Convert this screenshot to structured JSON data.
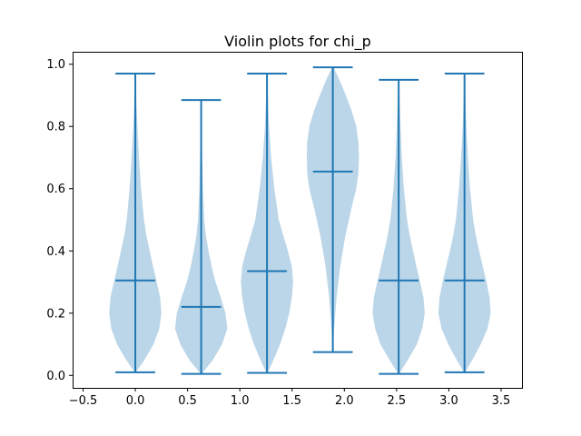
{
  "chart_data": {
    "type": "violin",
    "title": "Violin plots for chi_p",
    "xlabel": "",
    "ylabel": "",
    "xlim": [
      -0.6,
      3.7
    ],
    "ylim": [
      -0.04,
      1.04
    ],
    "x_ticks": [
      "−0.5",
      "0.0",
      "0.5",
      "1.0",
      "1.5",
      "2.0",
      "2.5",
      "3.0",
      "3.5"
    ],
    "y_ticks": [
      "0.0",
      "0.2",
      "0.4",
      "0.6",
      "0.8",
      "1.0"
    ],
    "grid": false,
    "color": "#1f77b4",
    "body_color": "#1f77b4",
    "body_alpha": 0.3,
    "series": [
      {
        "position": 0.0,
        "min": 0.01,
        "max": 0.97,
        "median": 0.305,
        "density": [
          [
            0.01,
            0.02
          ],
          [
            0.05,
            0.35
          ],
          [
            0.1,
            0.7
          ],
          [
            0.15,
            0.92
          ],
          [
            0.2,
            1.0
          ],
          [
            0.25,
            0.95
          ],
          [
            0.3,
            0.82
          ],
          [
            0.35,
            0.68
          ],
          [
            0.4,
            0.55
          ],
          [
            0.45,
            0.42
          ],
          [
            0.5,
            0.33
          ],
          [
            0.6,
            0.22
          ],
          [
            0.7,
            0.14
          ],
          [
            0.8,
            0.08
          ],
          [
            0.9,
            0.03
          ],
          [
            0.97,
            0.01
          ]
        ]
      },
      {
        "position": 0.63,
        "min": 0.005,
        "max": 0.885,
        "median": 0.22,
        "density": [
          [
            0.005,
            0.02
          ],
          [
            0.05,
            0.45
          ],
          [
            0.1,
            0.8
          ],
          [
            0.15,
            1.0
          ],
          [
            0.2,
            0.93
          ],
          [
            0.25,
            0.75
          ],
          [
            0.3,
            0.55
          ],
          [
            0.35,
            0.4
          ],
          [
            0.4,
            0.28
          ],
          [
            0.45,
            0.18
          ],
          [
            0.5,
            0.12
          ],
          [
            0.6,
            0.07
          ],
          [
            0.7,
            0.04
          ],
          [
            0.8,
            0.02
          ],
          [
            0.885,
            0.01
          ]
        ]
      },
      {
        "position": 1.26,
        "min": 0.008,
        "max": 0.97,
        "median": 0.335,
        "density": [
          [
            0.008,
            0.02
          ],
          [
            0.05,
            0.25
          ],
          [
            0.1,
            0.5
          ],
          [
            0.15,
            0.7
          ],
          [
            0.2,
            0.85
          ],
          [
            0.25,
            0.95
          ],
          [
            0.3,
            1.0
          ],
          [
            0.35,
            0.95
          ],
          [
            0.4,
            0.8
          ],
          [
            0.45,
            0.62
          ],
          [
            0.5,
            0.45
          ],
          [
            0.6,
            0.28
          ],
          [
            0.7,
            0.16
          ],
          [
            0.8,
            0.08
          ],
          [
            0.9,
            0.03
          ],
          [
            0.97,
            0.01
          ]
        ]
      },
      {
        "position": 1.89,
        "min": 0.075,
        "max": 0.99,
        "median": 0.655,
        "density": [
          [
            0.075,
            0.01
          ],
          [
            0.15,
            0.05
          ],
          [
            0.25,
            0.14
          ],
          [
            0.35,
            0.28
          ],
          [
            0.45,
            0.48
          ],
          [
            0.55,
            0.75
          ],
          [
            0.6,
            0.9
          ],
          [
            0.65,
            0.98
          ],
          [
            0.7,
            1.0
          ],
          [
            0.75,
            0.98
          ],
          [
            0.8,
            0.9
          ],
          [
            0.85,
            0.72
          ],
          [
            0.9,
            0.5
          ],
          [
            0.95,
            0.25
          ],
          [
            0.99,
            0.03
          ]
        ]
      },
      {
        "position": 2.52,
        "min": 0.005,
        "max": 0.95,
        "median": 0.305,
        "density": [
          [
            0.005,
            0.02
          ],
          [
            0.05,
            0.35
          ],
          [
            0.1,
            0.7
          ],
          [
            0.15,
            0.9
          ],
          [
            0.2,
            1.0
          ],
          [
            0.25,
            0.95
          ],
          [
            0.3,
            0.82
          ],
          [
            0.35,
            0.68
          ],
          [
            0.4,
            0.55
          ],
          [
            0.45,
            0.42
          ],
          [
            0.5,
            0.32
          ],
          [
            0.6,
            0.2
          ],
          [
            0.7,
            0.12
          ],
          [
            0.8,
            0.07
          ],
          [
            0.9,
            0.03
          ],
          [
            0.95,
            0.01
          ]
        ]
      },
      {
        "position": 3.15,
        "min": 0.01,
        "max": 0.97,
        "median": 0.305,
        "density": [
          [
            0.01,
            0.02
          ],
          [
            0.05,
            0.3
          ],
          [
            0.1,
            0.62
          ],
          [
            0.15,
            0.88
          ],
          [
            0.2,
            1.0
          ],
          [
            0.25,
            0.96
          ],
          [
            0.3,
            0.84
          ],
          [
            0.35,
            0.7
          ],
          [
            0.4,
            0.56
          ],
          [
            0.45,
            0.43
          ],
          [
            0.5,
            0.33
          ],
          [
            0.6,
            0.21
          ],
          [
            0.7,
            0.13
          ],
          [
            0.8,
            0.07
          ],
          [
            0.9,
            0.03
          ],
          [
            0.97,
            0.01
          ]
        ]
      }
    ]
  }
}
